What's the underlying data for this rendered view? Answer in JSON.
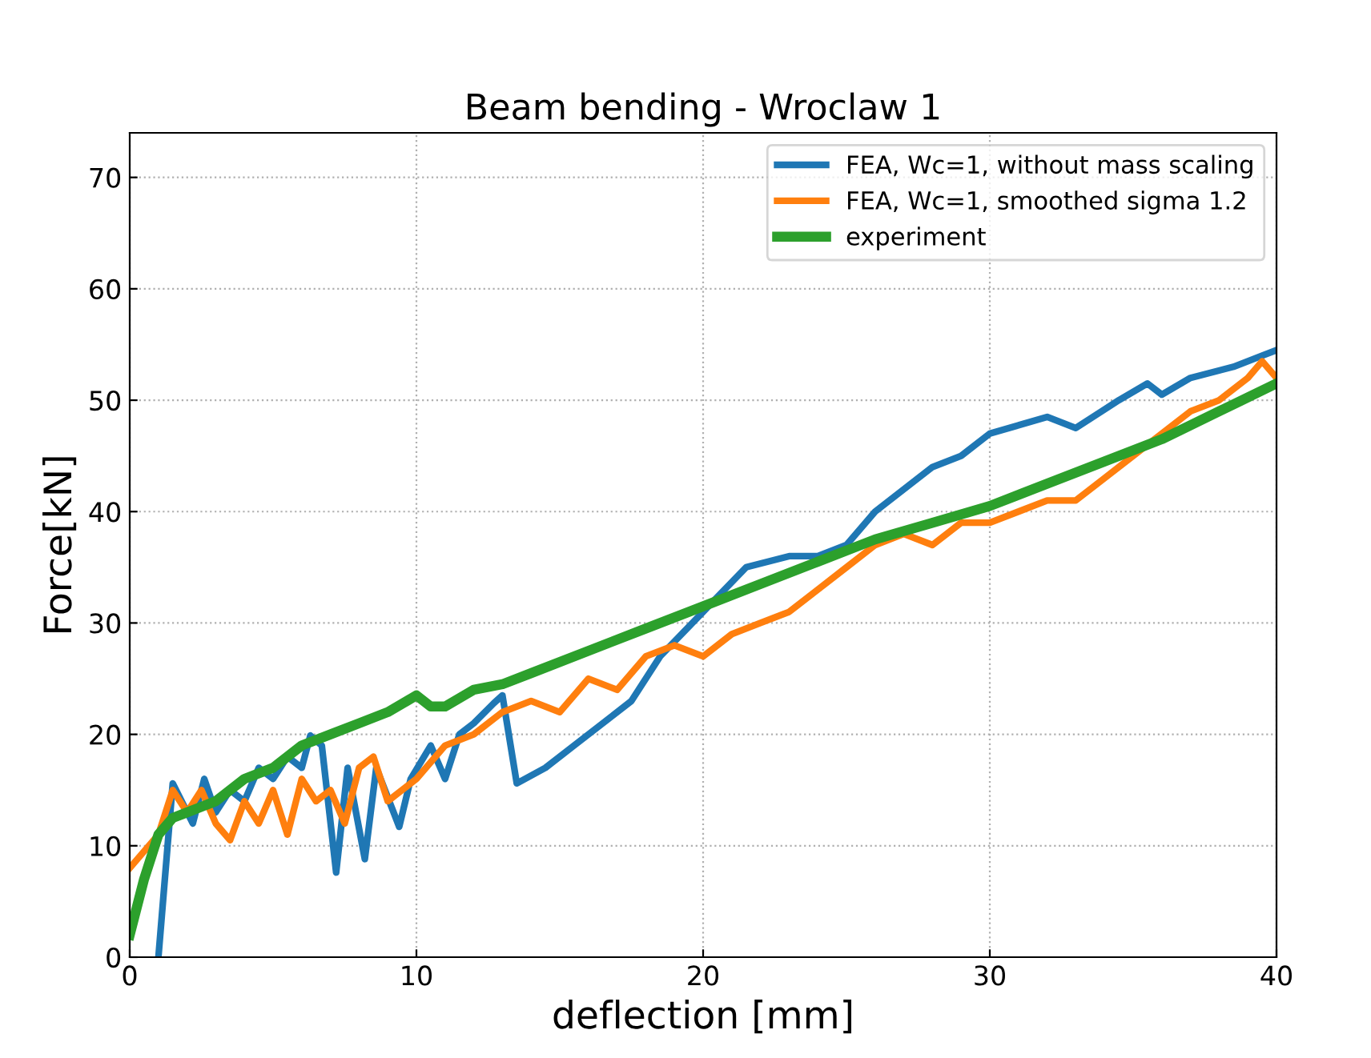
{
  "chart_data": {
    "type": "line",
    "title": "Beam bending - Wroclaw 1",
    "xlabel": "deflection [mm]",
    "ylabel": "Force[kN]",
    "xlim": [
      0,
      40
    ],
    "ylim": [
      0,
      74
    ],
    "xticks": [
      0,
      10,
      20,
      30,
      40
    ],
    "yticks": [
      0,
      10,
      20,
      30,
      40,
      50,
      60,
      70
    ],
    "grid": true,
    "legend": "top right",
    "line_style": "solid",
    "marker": "none",
    "series": [
      {
        "name": "FEA, Wc=1, without mass scaling",
        "color": "#1f77b4",
        "x": [
          1,
          1.5,
          2.2,
          2.6,
          3,
          3.5,
          4,
          4.5,
          5,
          5.5,
          6,
          6.3,
          6.7,
          7.2,
          7.6,
          8.2,
          8.6,
          9.4,
          9.8,
          10.5,
          11,
          11.5,
          12,
          12.7,
          13,
          13.5,
          14.5,
          15.5,
          16.5,
          17.5,
          18.5,
          20,
          21.5,
          23,
          24,
          25,
          26,
          28,
          29,
          30,
          32,
          33,
          34.5,
          35.5,
          36,
          37,
          38.5,
          39.5,
          40
        ],
        "values": [
          0,
          15.6,
          12,
          16,
          13,
          15,
          14,
          17,
          16,
          18,
          17,
          19.9,
          19,
          7.6,
          17,
          8.8,
          17,
          11.7,
          16,
          19,
          16,
          20,
          21,
          22.8,
          23.5,
          15.6,
          17,
          19,
          21,
          23,
          27,
          31,
          35,
          36,
          36,
          37,
          40,
          44,
          45,
          47,
          48.5,
          47.5,
          50,
          51.5,
          50.5,
          52,
          53,
          54,
          54.5
        ]
      },
      {
        "name": "FEA, Wc=1, smoothed sigma 1.2",
        "color": "#ff7f0e",
        "x": [
          0,
          1,
          1.5,
          2,
          2.5,
          3,
          3.5,
          4,
          4.5,
          5,
          5.5,
          6,
          6.5,
          7,
          7.5,
          8,
          8.5,
          9,
          10,
          11,
          12,
          13,
          14,
          15,
          16,
          17,
          18,
          19,
          20,
          21,
          22,
          23,
          24,
          25,
          26,
          27,
          28,
          29,
          30,
          31,
          32,
          33,
          34,
          35,
          36,
          37,
          38,
          39,
          39.5,
          40
        ],
        "values": [
          8,
          11,
          15,
          13,
          15,
          12,
          10.5,
          14,
          12,
          15,
          11,
          16,
          14,
          15,
          12,
          17,
          18,
          14,
          16,
          19,
          20,
          22,
          23,
          22,
          25,
          24,
          27,
          28,
          27,
          29,
          30,
          31,
          33,
          35,
          37,
          38,
          37,
          39,
          39,
          40,
          41,
          41,
          43,
          45,
          47,
          49,
          50,
          52,
          53.5,
          52
        ]
      },
      {
        "name": "experiment",
        "color": "#2ca02c",
        "x": [
          0,
          0.5,
          1,
          1.5,
          2,
          3,
          4,
          5,
          6,
          7,
          8,
          9,
          10,
          10.5,
          11,
          12,
          13,
          14,
          16,
          18,
          20,
          22,
          24,
          26,
          28,
          30,
          32,
          34,
          36,
          38,
          40
        ],
        "values": [
          2,
          7,
          11,
          12.5,
          13,
          14,
          16,
          17,
          19,
          20,
          21,
          22,
          23.5,
          22.5,
          22.5,
          24,
          24.5,
          25.5,
          27.5,
          29.5,
          31.5,
          33.5,
          35.5,
          37.5,
          39,
          40.5,
          42.5,
          44.5,
          46.5,
          49,
          51.5
        ]
      }
    ]
  }
}
